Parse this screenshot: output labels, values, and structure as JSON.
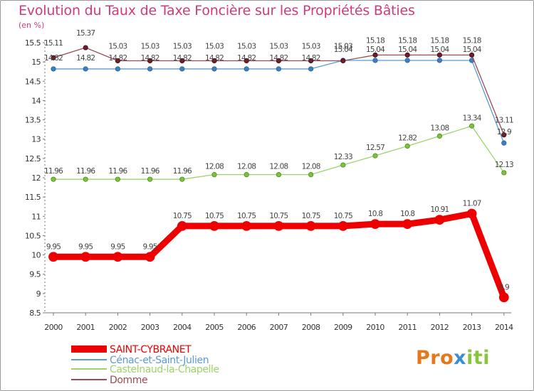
{
  "title": "Evolution du Taux de Taxe Foncière sur les Propriétés Bâties",
  "subtitle": "(en %)",
  "logo": {
    "part1": "Pro",
    "part2": "x",
    "part3": "iti"
  },
  "chart_data": {
    "type": "line",
    "title": "Evolution du Taux de Taxe Foncière sur les Propriétés Bâties",
    "ylabel": "(en %)",
    "xlabel": "",
    "ylim": [
      8.5,
      15.5
    ],
    "yticks": [
      "8.5",
      "9",
      "9.5",
      "10",
      "10.5",
      "11",
      "11.5",
      "12",
      "12.5",
      "13",
      "13.5",
      "14",
      "14.5",
      "15",
      "15.5"
    ],
    "grid": false,
    "legend": "bottom-left",
    "x": [
      "2000",
      "2001",
      "2002",
      "2003",
      "2004",
      "2005",
      "2006",
      "2007",
      "2008",
      "2009",
      "2010",
      "2011",
      "2012",
      "2013",
      "2014"
    ],
    "series": [
      {
        "name": "SAINT-CYBRANET",
        "color": "#ee0000",
        "values": [
          9.95,
          9.95,
          9.95,
          9.95,
          10.75,
          10.75,
          10.75,
          10.75,
          10.75,
          10.75,
          10.8,
          10.8,
          10.91,
          11.07,
          8.9
        ],
        "labels": [
          "9.95",
          "9.95",
          "9.95",
          "9.95",
          "10.75",
          "10.75",
          "10.75",
          "10.75",
          "10.75",
          "10.75",
          "10.8",
          "10.8",
          "10.91",
          "11.07",
          "8.9"
        ]
      },
      {
        "name": "Cénac-et-Saint-Julien",
        "color": "#4a8fc8",
        "values": [
          14.82,
          14.82,
          14.82,
          14.82,
          14.82,
          14.82,
          14.82,
          14.82,
          14.82,
          15.04,
          15.04,
          15.04,
          15.04,
          15.04,
          12.9
        ],
        "labels": [
          "14.82",
          "14.82",
          "14.82",
          "14.82",
          "14.82",
          "14.82",
          "14.82",
          "14.82",
          "14.82",
          "15.04",
          "15.04",
          "15.04",
          "15.04",
          "15.04",
          "12.9"
        ]
      },
      {
        "name": "Castelnaud-la-Chapelle",
        "color": "#88c944",
        "values": [
          11.96,
          11.96,
          11.96,
          11.96,
          11.96,
          12.08,
          12.08,
          12.08,
          12.08,
          12.33,
          12.57,
          12.82,
          13.08,
          13.34,
          12.13
        ],
        "labels": [
          "11.96",
          "11.96",
          "11.96",
          "11.96",
          "11.96",
          "12.08",
          "12.08",
          "12.08",
          "12.08",
          "12.33",
          "12.57",
          "12.82",
          "13.08",
          "13.34",
          "12.13"
        ]
      },
      {
        "name": "Domme",
        "color": "#7a2330",
        "values": [
          15.11,
          15.37,
          15.03,
          15.03,
          15.03,
          15.03,
          15.03,
          15.03,
          15.03,
          15.03,
          15.18,
          15.18,
          15.18,
          15.18,
          13.11
        ],
        "labels": [
          "15.11",
          "15.37",
          "15.03",
          "15.03",
          "15.03",
          "15.03",
          "15.03",
          "15.03",
          "15.03",
          "15.03",
          "15.18",
          "15.18",
          "15.18",
          "15.18",
          "13.11"
        ]
      }
    ]
  }
}
